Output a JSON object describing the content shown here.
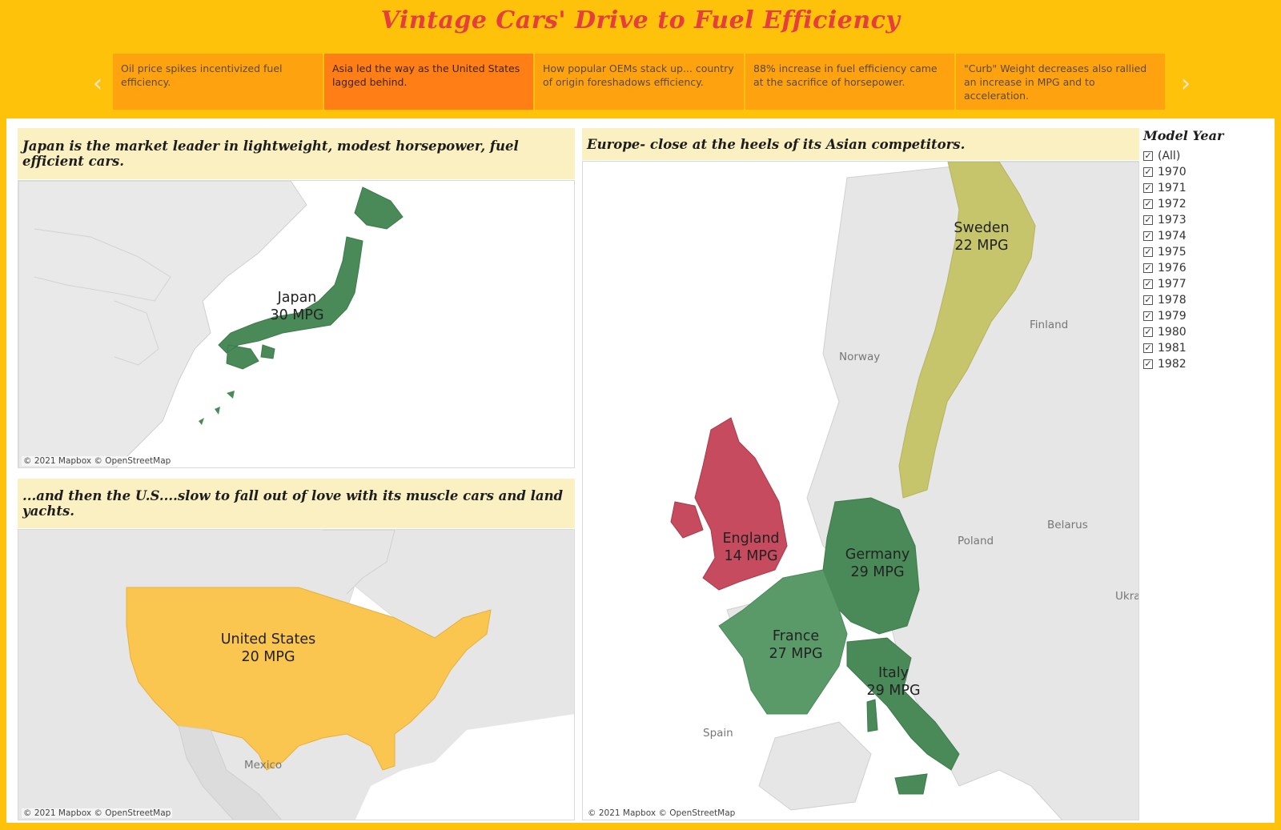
{
  "title": "Vintage Cars' Drive to Fuel Efficiency",
  "story_points": [
    {
      "label": "Oil price spikes incentivized fuel efficiency.",
      "active": false
    },
    {
      "label": "Asia led the way as the United States lagged behind.",
      "active": true
    },
    {
      "label": "How popular OEMs stack up... country of origin foreshadows efficiency.",
      "active": false
    },
    {
      "label": "88% increase in fuel efficiency came at the sacrifice of horsepower.",
      "active": false
    },
    {
      "label": "\"Curb\" Weight decreases also rallied an increase in MPG and to acceleration.",
      "active": false
    }
  ],
  "nav": {
    "prev_icon": "chevron-left-icon",
    "next_icon": "chevron-right-icon",
    "prev": "‹",
    "next": "›"
  },
  "panels": {
    "japan": {
      "caption": "Japan is the market leader in lightweight, modest horsepower, fuel efficient cars.",
      "attribution": "© 2021 Mapbox  © OpenStreetMap",
      "country": "Japan",
      "mpg_label": "30 MPG",
      "mpg": 30
    },
    "usa": {
      "caption": "...and then the U.S....slow to fall out of love with its muscle cars and land yachts.",
      "attribution": "© 2021 Mapbox  © OpenStreetMap",
      "country": "United States",
      "mpg_label": "20 MPG",
      "mpg": 20,
      "base_labels": {
        "mexico": "Mexico"
      }
    },
    "europe": {
      "caption": "Europe- close at the heels of its Asian competitors.",
      "attribution": "© 2021 Mapbox  © OpenStreetMap",
      "countries": [
        {
          "name": "Sweden",
          "mpg_label": "22 MPG",
          "mpg": 22
        },
        {
          "name": "England",
          "mpg_label": "14 MPG",
          "mpg": 14
        },
        {
          "name": "Germany",
          "mpg_label": "29 MPG",
          "mpg": 29
        },
        {
          "name": "France",
          "mpg_label": "27 MPG",
          "mpg": 27
        },
        {
          "name": "Italy",
          "mpg_label": "29 MPG",
          "mpg": 29
        }
      ],
      "base_labels": {
        "finland": "Finland",
        "norway": "Norway",
        "poland": "Poland",
        "belarus": "Belarus",
        "ukraine": "Ukra",
        "spain": "Spain"
      }
    }
  },
  "filter": {
    "title": "Model Year",
    "items": [
      "(All)",
      "1970",
      "1971",
      "1972",
      "1973",
      "1974",
      "1975",
      "1976",
      "1977",
      "1978",
      "1979",
      "1980",
      "1981",
      "1982"
    ],
    "checked": true
  },
  "colors": {
    "background": "#fec20b",
    "title": "#e63d3d",
    "story_active": "#ff7f16",
    "story_inactive": "#ffa20f",
    "caption_bg": "#fbf0c2",
    "high_mpg": "#4a8a59",
    "mid_high_mpg": "#5a9a69",
    "mid_mpg": "#c7c56c",
    "us_mpg": "#fbc64f",
    "low_mpg": "#c64b5e"
  }
}
